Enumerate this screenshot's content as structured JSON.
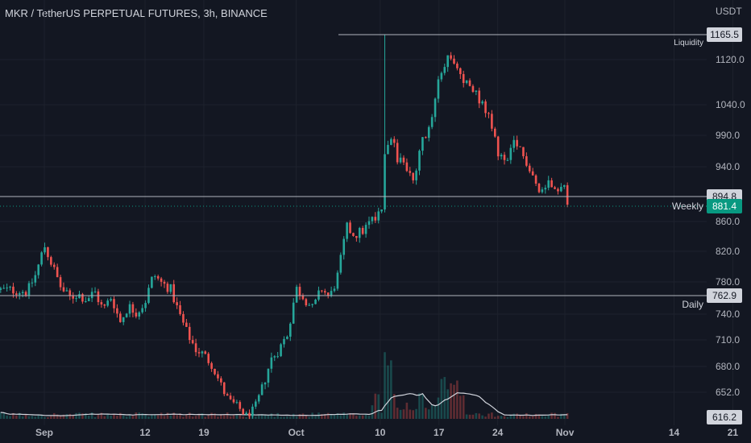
{
  "header": {
    "title": "MKR / TetherUS PERPETUAL FUTURES, 3h, BINANCE"
  },
  "colors": {
    "background": "#131722",
    "grid": "#1e222d",
    "up": "#26a69a",
    "down": "#ef5350",
    "level_line": "#b2b5be",
    "badge_bg": "#d1d4dc",
    "badge_text": "#131722",
    "price_badge_bg": "#089981"
  },
  "chart_data": {
    "type": "candlestick",
    "currency_label": "USDT",
    "y_ticks": [
      1120.0,
      1040.0,
      990.0,
      940.0,
      860.0,
      820.0,
      780.0,
      740.0,
      710.0,
      680.0,
      652.0
    ],
    "y_tick_labels": [
      "1120.0",
      "1040.0",
      "990.0",
      "940.0",
      "860.0",
      "820.0",
      "780.0",
      "740.0",
      "710.0",
      "680.0",
      "652.0"
    ],
    "x_tick_labels": [
      "Sep",
      "12",
      "19",
      "Oct",
      "10",
      "17",
      "24",
      "Nov",
      "14",
      "21"
    ],
    "x_tick_days": [
      0,
      12,
      19,
      30,
      40,
      47,
      54,
      62,
      75,
      82
    ],
    "levels": [
      {
        "value": 1165.5,
        "label": "Liquidity",
        "badge": "1165.5"
      },
      {
        "value": 894.8,
        "label": "",
        "badge": "894.8"
      },
      {
        "value": 762.9,
        "label": "Daily",
        "badge": "762.9"
      }
    ],
    "current_price": {
      "value": 881.4,
      "label": "Weekly",
      "badge": "881.4"
    },
    "volume_ma_badge": "616.2",
    "price_path": [
      [
        -4,
        770
      ],
      [
        -2,
        768
      ],
      [
        -1,
        790
      ],
      [
        0,
        828
      ],
      [
        1,
        800
      ],
      [
        2,
        772
      ],
      [
        3,
        760
      ],
      [
        4,
        765
      ],
      [
        5,
        758
      ],
      [
        6,
        768
      ],
      [
        7,
        745
      ],
      [
        8,
        762
      ],
      [
        9,
        730
      ],
      [
        10,
        750
      ],
      [
        11,
        742
      ],
      [
        12,
        755
      ],
      [
        13,
        790
      ],
      [
        14,
        778
      ],
      [
        15,
        772
      ],
      [
        16,
        742
      ],
      [
        17,
        718
      ],
      [
        18,
        700
      ],
      [
        19,
        693
      ],
      [
        20,
        682
      ],
      [
        21,
        660
      ],
      [
        22,
        640
      ],
      [
        23,
        632
      ],
      [
        24,
        618
      ],
      [
        25,
        628
      ],
      [
        26,
        658
      ],
      [
        27,
        688
      ],
      [
        28,
        700
      ],
      [
        29,
        718
      ],
      [
        30,
        772
      ],
      [
        31,
        760
      ],
      [
        32,
        746
      ],
      [
        33,
        772
      ],
      [
        34,
        760
      ],
      [
        35,
        790
      ],
      [
        36,
        852
      ],
      [
        37,
        842
      ],
      [
        38,
        848
      ],
      [
        39,
        862
      ],
      [
        40,
        878
      ],
      [
        40.5,
        890
      ],
      [
        41,
        1000
      ],
      [
        42,
        955
      ],
      [
        43,
        942
      ],
      [
        44,
        912
      ],
      [
        45,
        982
      ],
      [
        46,
        1000
      ],
      [
        47,
        1100
      ],
      [
        48,
        1120
      ],
      [
        49,
        1106
      ],
      [
        50,
        1084
      ],
      [
        51,
        1065
      ],
      [
        52,
        1046
      ],
      [
        53,
        1015
      ],
      [
        54,
        965
      ],
      [
        55,
        942
      ],
      [
        56,
        978
      ],
      [
        57,
        958
      ],
      [
        58,
        935
      ],
      [
        59,
        898
      ],
      [
        60,
        918
      ],
      [
        61,
        912
      ],
      [
        62,
        905
      ],
      [
        62.5,
        882
      ]
    ]
  }
}
